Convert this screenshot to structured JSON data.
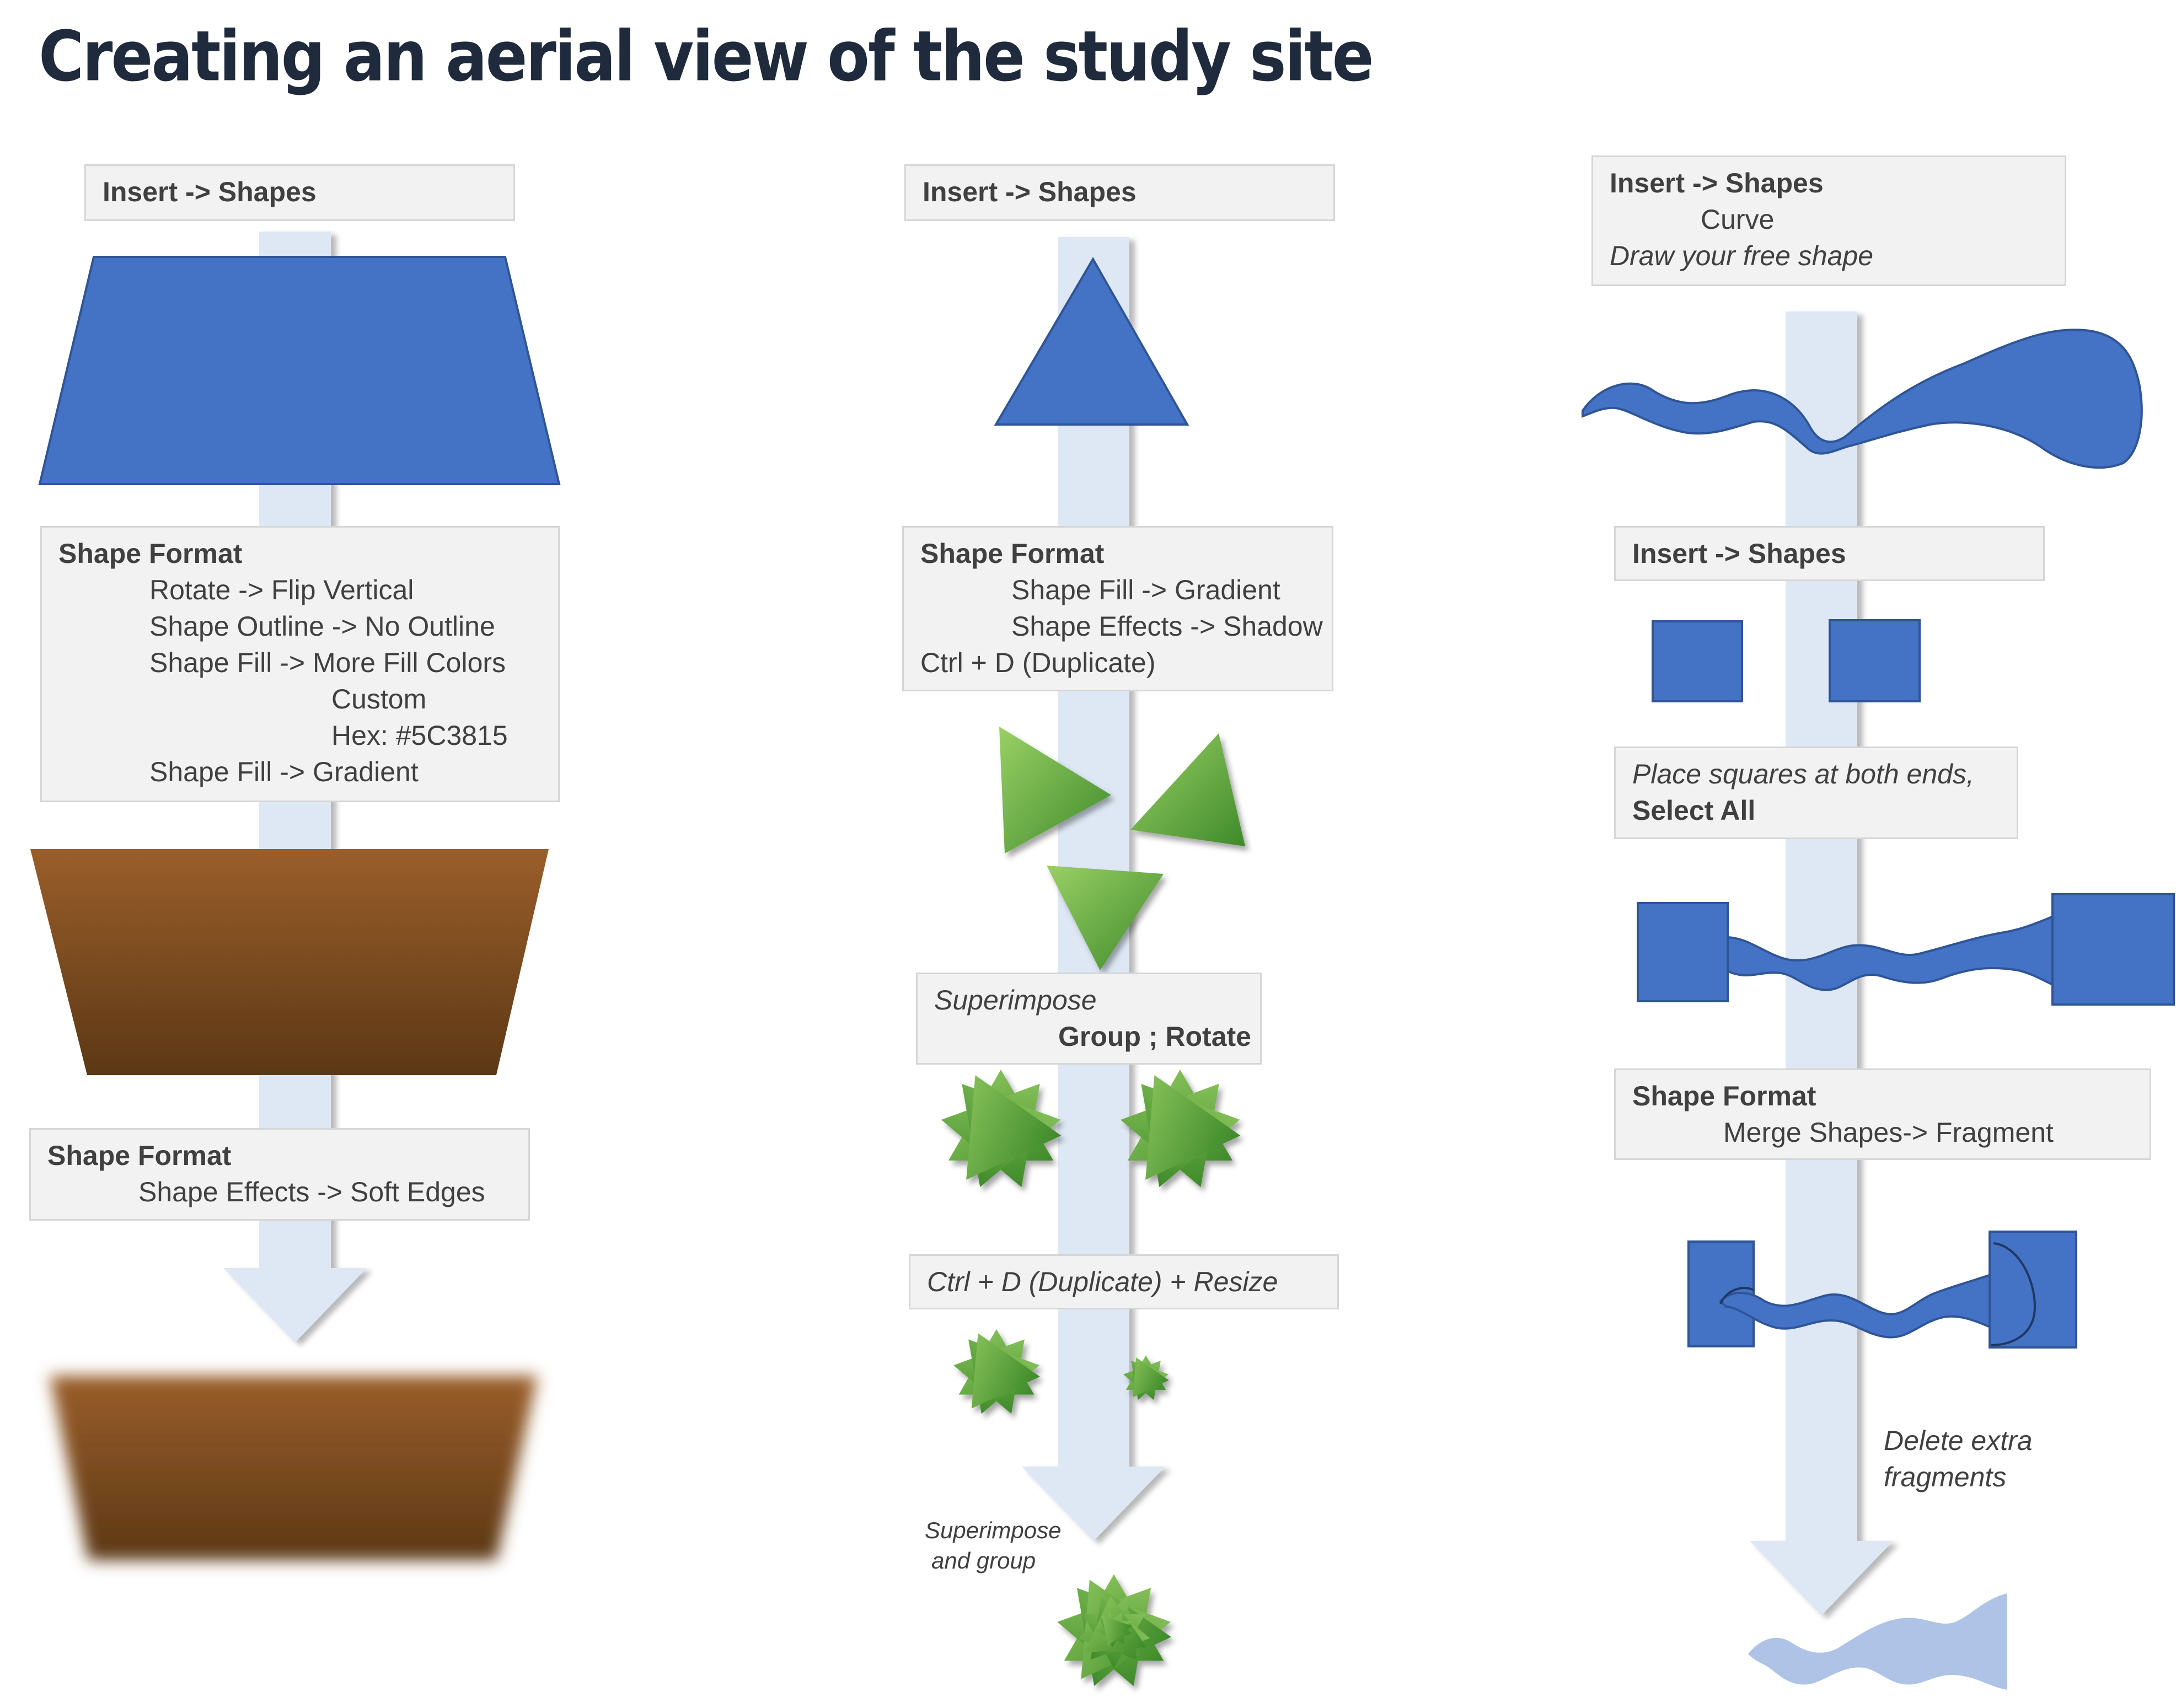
{
  "title": "Creating an aerial view of the study site",
  "colors": {
    "shape_blue": "#4472c4",
    "arrow_light": "#dde8f4",
    "soil_brown_top": "#9a5e2a",
    "soil_brown_bottom": "#5c3815",
    "leaf_green_light": "#8cc85a",
    "leaf_green_dark": "#3e8a2a",
    "faded_blue": "#aec3e6",
    "box_bg": "#f2f2f2",
    "box_border": "#d6d6d6",
    "text": "#404040"
  },
  "column1": {
    "box1": [
      "Insert -> Shapes"
    ],
    "box2": {
      "header": "Shape Format",
      "lines": [
        "Rotate -> Flip Vertical",
        "Shape Outline -> No Outline",
        "Shape Fill ->  More Fill Colors",
        "Custom",
        "Hex: #5C3815",
        "Shape Fill ->  Gradient"
      ]
    },
    "box3": {
      "header": "Shape Format",
      "lines": [
        "Shape Effects -> Soft Edges"
      ]
    }
  },
  "column2": {
    "box1": [
      "Insert -> Shapes"
    ],
    "box2": {
      "header": "Shape Format",
      "lines": [
        "Shape Fill -> Gradient",
        "Shape Effects -> Shadow",
        "Ctrl + D (Duplicate)"
      ]
    },
    "box3": {
      "line1": "Superimpose",
      "line2": "Group ; Rotate"
    },
    "box4": "Ctrl + D (Duplicate) + Resize",
    "note": [
      "Superimpose",
      "and group"
    ]
  },
  "column3": {
    "box1": {
      "header": "Insert -> Shapes",
      "line2": "Curve",
      "line3": "Draw your free shape"
    },
    "box2": "Insert -> Shapes",
    "box3": {
      "line1": "Place squares at both ends,",
      "line2": "Select All"
    },
    "box4": {
      "header": "Shape Format",
      "line2": "Merge Shapes-> Fragment"
    },
    "note": [
      "Delete extra",
      "fragments"
    ]
  }
}
